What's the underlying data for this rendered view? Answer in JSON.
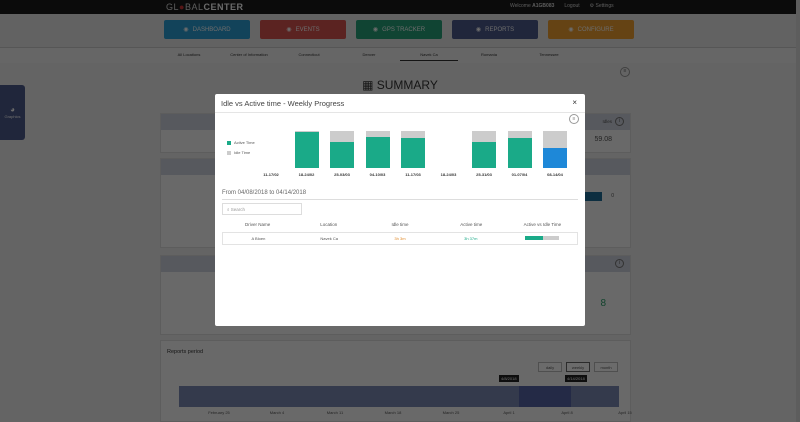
{
  "header": {
    "logo_left": "GL",
    "logo_mid": "BAL",
    "logo_bold": "CENTER",
    "welcome": "Welcome",
    "username": "A1GB083",
    "logout": "Logout",
    "settings": "Settings"
  },
  "nav": [
    {
      "label": "DASHBOARD",
      "icon": "dashboard-icon",
      "color": "#2a9fd6"
    },
    {
      "label": "EVENTS",
      "icon": "warning-icon",
      "color": "#d9534f"
    },
    {
      "label": "GPS TRACKER",
      "icon": "map-pin-icon",
      "color": "#26a27a"
    },
    {
      "label": "REPORTS",
      "icon": "reports-icon",
      "color": "#4b5a8c"
    },
    {
      "label": "CONFIGURE",
      "icon": "user-icon",
      "color": "#f0a030"
    }
  ],
  "subnav": [
    "All Locations",
    "Center of Information",
    "Connecticut",
    "Denver",
    "Navek Ca",
    "Romania",
    "Tennessee"
  ],
  "page": {
    "title": "SUMMARY",
    "graphics": "Graphics",
    "idles_label": "Idles",
    "idles_value": "59.08",
    "bar_value": "0",
    "third_value": "8"
  },
  "reports_period": {
    "title": "Reports period",
    "buttons": [
      "daily",
      "weekly",
      "month"
    ],
    "tooltip_start": "4/8/2018",
    "tooltip_end": "4/14/2018",
    "ticks": [
      "February 25",
      "March 4",
      "March 11",
      "March 18",
      "March 25",
      "April 1",
      "April 8",
      "April 15"
    ]
  },
  "modal": {
    "title": "Idle vs Active time - Weekly Progress",
    "close": "×",
    "range": "From 04/08/2018 to 04/14/2018",
    "search_placeholder": "Search",
    "columns": [
      "Driver Name",
      "Location",
      "Idle time",
      "Active time",
      "Active vs Idle Time"
    ],
    "rows": [
      {
        "driver": "A Bloen",
        "location": "Navek Ca",
        "idle": "3h 3m",
        "active": "3h 37m",
        "active_pct": 54
      }
    ]
  },
  "colors": {
    "active": "#1aaa88",
    "idle": "#cccccc",
    "selected": "#1e88d8"
  },
  "chart_data": {
    "type": "bar",
    "stacked": true,
    "categories": [
      "11-17/02",
      "18-24/02",
      "25-03/03",
      "04-10/03",
      "11-17/03",
      "18-24/03",
      "25-31/03",
      "01-07/04",
      "08-14/04"
    ],
    "series": [
      {
        "name": "Active Time",
        "values": [
          null,
          97,
          70,
          85,
          82,
          null,
          70,
          82,
          55
        ]
      },
      {
        "name": "Idle Time",
        "values": [
          null,
          3,
          30,
          15,
          18,
          null,
          30,
          18,
          45
        ]
      }
    ],
    "ylim": [
      0,
      100
    ],
    "legend": "left",
    "selected": "08-14/04"
  }
}
